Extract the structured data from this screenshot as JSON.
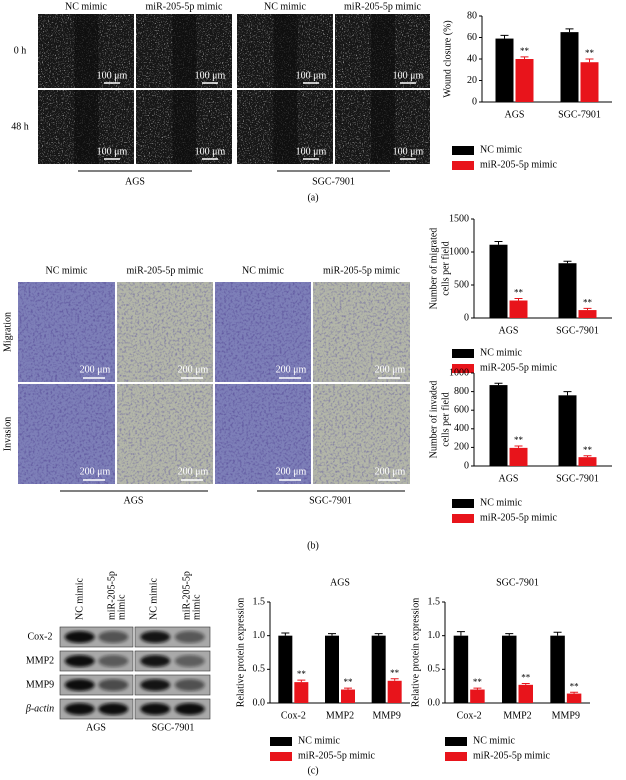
{
  "figure": {
    "panel_labels": [
      "(a)",
      "(b)",
      "(c)"
    ],
    "wound": {
      "columns": [
        "NC mimic",
        "miR-205-5p mimic",
        "NC mimic",
        "miR-205-5p mimic"
      ],
      "rows": [
        "0 h",
        "48 h"
      ],
      "scale": "100 μm",
      "groups": [
        "AGS",
        "SGC-7901"
      ]
    },
    "transwell": {
      "columns": [
        "NC mimic",
        "miR-205-5p mimic",
        "NC mimic",
        "miR-205-5p mimic"
      ],
      "rows": [
        "Migration",
        "Invasion"
      ],
      "scale": "200 μm",
      "groups": [
        "AGS",
        "SGC-7901"
      ]
    },
    "western": {
      "lanes": [
        [
          "NC mimic"
        ],
        [
          "miR-205-5p",
          "mimic"
        ],
        [
          "NC mimic"
        ],
        [
          "miR-205-5p",
          "mimic"
        ]
      ],
      "proteins": [
        "Cox-2",
        "MMP2",
        "MMP9",
        "β-actin"
      ],
      "groups": [
        "AGS",
        "SGC-7901"
      ]
    }
  },
  "chart_data": [
    {
      "type": "bar",
      "ylabel": [
        "Wound closure (%)"
      ],
      "categories": [
        "AGS",
        "SGC-7901"
      ],
      "series": [
        {
          "name": "NC mimic",
          "color": "#000000",
          "values": [
            59,
            65
          ],
          "errors": [
            3,
            3
          ]
        },
        {
          "name": "miR-205-5p mimic",
          "color": "#e8141b",
          "values": [
            40,
            37
          ],
          "errors": [
            2,
            3
          ],
          "annotations": [
            "**",
            "**"
          ]
        }
      ],
      "ylim": [
        0,
        80
      ],
      "yticks": [
        0,
        20,
        40,
        60,
        80
      ]
    },
    {
      "type": "bar",
      "ylabel": [
        "Number of migrated",
        "cells per field"
      ],
      "categories": [
        "AGS",
        "SGC-7901"
      ],
      "series": [
        {
          "name": "NC mimic",
          "color": "#000000",
          "values": [
            1110,
            830
          ],
          "errors": [
            50,
            30
          ]
        },
        {
          "name": "miR-205-5p mimic",
          "color": "#e8141b",
          "values": [
            265,
            120
          ],
          "errors": [
            30,
            25
          ],
          "annotations": [
            "**",
            "**"
          ]
        }
      ],
      "ylim": [
        0,
        1500
      ],
      "yticks": [
        0,
        500,
        1000,
        1500
      ]
    },
    {
      "type": "bar",
      "ylabel": [
        "Number of invaded",
        "cells per field"
      ],
      "categories": [
        "AGS",
        "SGC-7901"
      ],
      "series": [
        {
          "name": "NC mimic",
          "color": "#000000",
          "values": [
            870,
            760
          ],
          "errors": [
            20,
            40
          ]
        },
        {
          "name": "miR-205-5p mimic",
          "color": "#e8141b",
          "values": [
            195,
            95
          ],
          "errors": [
            20,
            15
          ],
          "annotations": [
            "**",
            "**"
          ]
        }
      ],
      "ylim": [
        0,
        1000
      ],
      "yticks": [
        0,
        200,
        400,
        600,
        800,
        1000
      ]
    },
    {
      "type": "bar",
      "title": "AGS",
      "ylabel": [
        "Relative protein expression"
      ],
      "categories": [
        "Cox-2",
        "MMP2",
        "MMP9"
      ],
      "series": [
        {
          "name": "NC mimic",
          "color": "#000000",
          "values": [
            1,
            1,
            1
          ],
          "errors": [
            0.04,
            0.03,
            0.03
          ]
        },
        {
          "name": "miR-205-5p mimic",
          "color": "#e8141b",
          "values": [
            0.31,
            0.2,
            0.33
          ],
          "errors": [
            0.03,
            0.02,
            0.03
          ],
          "annotations": [
            "**",
            "**",
            "**"
          ]
        }
      ],
      "ylim": [
        0,
        1.5
      ],
      "yticks": [
        {
          "value": 0,
          "label": "0.0"
        },
        {
          "value": 0.5,
          "label": "0.5"
        },
        {
          "value": 1,
          "label": "1.0"
        },
        {
          "value": 1.5,
          "label": "1.5"
        }
      ]
    },
    {
      "type": "bar",
      "title": "SGC-7901",
      "ylabel": [
        "Relative protein expression"
      ],
      "categories": [
        "Cox-2",
        "MMP2",
        "MMP9"
      ],
      "series": [
        {
          "name": "NC mimic",
          "color": "#000000",
          "values": [
            1,
            1,
            1
          ],
          "errors": [
            0.06,
            0.03,
            0.05
          ]
        },
        {
          "name": "miR-205-5p mimic",
          "color": "#e8141b",
          "values": [
            0.2,
            0.27,
            0.14
          ],
          "errors": [
            0.02,
            0.02,
            0.02
          ],
          "annotations": [
            "**",
            "**",
            "**"
          ]
        }
      ],
      "ylim": [
        0,
        1.5
      ],
      "yticks": [
        {
          "value": 0,
          "label": "0.0"
        },
        {
          "value": 0.5,
          "label": "0.5"
        },
        {
          "value": 1,
          "label": "1.0"
        },
        {
          "value": 1.5,
          "label": "1.5"
        }
      ]
    }
  ]
}
